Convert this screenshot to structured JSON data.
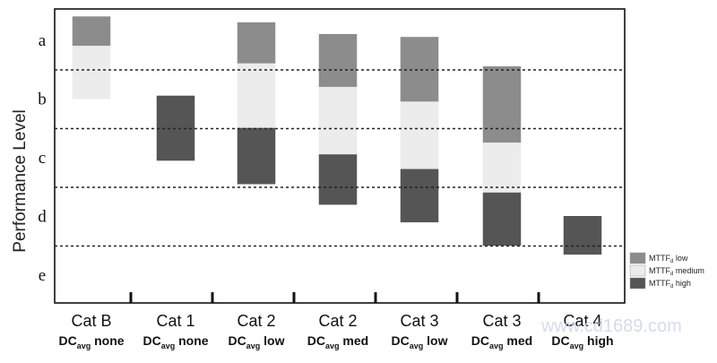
{
  "chart_data": {
    "type": "bar",
    "ylabel": "Performance Level",
    "y_levels": [
      "a",
      "b",
      "c",
      "d",
      "e"
    ],
    "grid": "dashed horizontal lines at level boundaries",
    "categories": [
      {
        "main": "Cat B",
        "sub_prefix": "DC",
        "sub_sub": "avg",
        "sub_suffix": " none"
      },
      {
        "main": "Cat 1",
        "sub_prefix": "DC",
        "sub_sub": "avg",
        "sub_suffix": " none"
      },
      {
        "main": "Cat 2",
        "sub_prefix": "DC",
        "sub_sub": "avg",
        "sub_suffix": " low"
      },
      {
        "main": "Cat 2",
        "sub_prefix": "DC",
        "sub_sub": "avg",
        "sub_suffix": " med"
      },
      {
        "main": "Cat 3",
        "sub_prefix": "DC",
        "sub_sub": "avg",
        "sub_suffix": " low"
      },
      {
        "main": "Cat 3",
        "sub_prefix": "DC",
        "sub_sub": "avg",
        "sub_suffix": " med"
      },
      {
        "main": "Cat 4",
        "sub_prefix": "DC",
        "sub_sub": "avg",
        "sub_suffix": " high"
      }
    ],
    "series": [
      {
        "name": "MTTFd low",
        "legend_prefix": "MTTF",
        "legend_sub": "d",
        "legend_suffix": " low",
        "color": "#8c8c8c"
      },
      {
        "name": "MTTFd medium",
        "legend_prefix": "MTTF",
        "legend_sub": "d",
        "legend_suffix": " medium",
        "color": "#ececec"
      },
      {
        "name": "MTTFd high",
        "legend_prefix": "MTTF",
        "legend_sub": "d",
        "legend_suffix": " high",
        "color": "#555555"
      }
    ],
    "bars": [
      {
        "category": 0,
        "series": 0,
        "from": 0.1,
        "to": 0.6
      },
      {
        "category": 0,
        "series": 1,
        "from": 0.6,
        "to": 1.5
      },
      {
        "category": 1,
        "series": 2,
        "from": 1.45,
        "to": 2.55
      },
      {
        "category": 2,
        "series": 0,
        "from": 0.2,
        "to": 0.9
      },
      {
        "category": 2,
        "series": 1,
        "from": 0.9,
        "to": 2.0
      },
      {
        "category": 2,
        "series": 2,
        "from": 2.0,
        "to": 2.95
      },
      {
        "category": 3,
        "series": 0,
        "from": 0.4,
        "to": 1.3
      },
      {
        "category": 3,
        "series": 1,
        "from": 1.3,
        "to": 2.45
      },
      {
        "category": 3,
        "series": 2,
        "from": 2.45,
        "to": 3.3
      },
      {
        "category": 4,
        "series": 0,
        "from": 0.45,
        "to": 1.55
      },
      {
        "category": 4,
        "series": 1,
        "from": 1.55,
        "to": 2.7
      },
      {
        "category": 4,
        "series": 2,
        "from": 2.7,
        "to": 3.6
      },
      {
        "category": 5,
        "series": 0,
        "from": 0.95,
        "to": 2.25
      },
      {
        "category": 5,
        "series": 1,
        "from": 2.25,
        "to": 3.1
      },
      {
        "category": 5,
        "series": 2,
        "from": 3.1,
        "to": 4.0
      },
      {
        "category": 6,
        "series": 2,
        "from": 3.5,
        "to": 4.15
      }
    ]
  },
  "watermark": "www.cd1689.com"
}
